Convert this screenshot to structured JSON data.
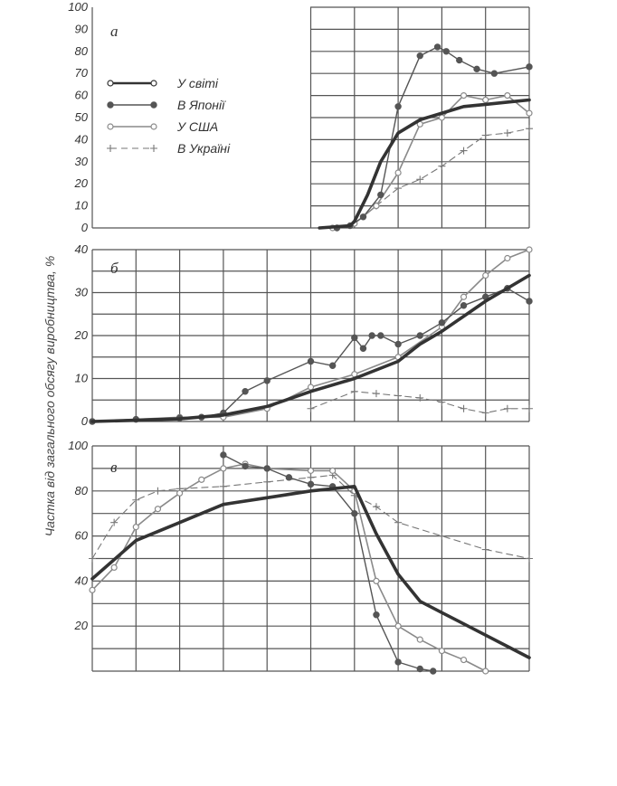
{
  "ylabel": "Частка від загального обсягу виробництва, %",
  "legend": [
    {
      "key": "world",
      "label": "У світі"
    },
    {
      "key": "japan",
      "label": "В Японії"
    },
    {
      "key": "usa",
      "label": "У США"
    },
    {
      "key": "ukraine",
      "label": "В Україні"
    }
  ],
  "colors": {
    "grid": "#555555",
    "world": "#333333",
    "japan": "#555555",
    "usa": "#888888",
    "ukraine": "#777777"
  },
  "chart_data": [
    {
      "type": "line",
      "panel_label": "а",
      "x_range": [
        0,
        10
      ],
      "ylim": [
        0,
        100
      ],
      "y_ticks": [
        "0",
        "10",
        "20",
        "30",
        "40",
        "50",
        "60",
        "70",
        "80",
        "90",
        "100"
      ],
      "grid": true,
      "legend_position": "top-left",
      "series": [
        {
          "key": "world",
          "points": [
            [
              5.2,
              0
            ],
            [
              5.9,
              1
            ],
            [
              6.0,
              3
            ],
            [
              6.3,
              15
            ],
            [
              6.6,
              30
            ],
            [
              7.0,
              43
            ],
            [
              7.5,
              49
            ],
            [
              8.0,
              52
            ],
            [
              8.5,
              55
            ],
            [
              9.0,
              56
            ],
            [
              9.5,
              57
            ],
            [
              10.0,
              58
            ]
          ]
        },
        {
          "key": "japan",
          "points": [
            [
              5.6,
              0
            ],
            [
              5.9,
              1
            ],
            [
              6.2,
              5
            ],
            [
              6.6,
              15
            ],
            [
              7.0,
              55
            ],
            [
              7.5,
              78
            ],
            [
              7.9,
              82
            ],
            [
              8.1,
              80
            ],
            [
              8.4,
              76
            ],
            [
              8.8,
              72
            ],
            [
              9.2,
              70
            ],
            [
              10.0,
              73
            ]
          ]
        },
        {
          "key": "usa",
          "points": [
            [
              5.5,
              0
            ],
            [
              6.0,
              2
            ],
            [
              6.5,
              10
            ],
            [
              7.0,
              25
            ],
            [
              7.5,
              47
            ],
            [
              8.0,
              50
            ],
            [
              8.5,
              60
            ],
            [
              9.0,
              58
            ],
            [
              9.5,
              60
            ],
            [
              10.0,
              52
            ]
          ]
        },
        {
          "key": "ukraine",
          "points": [
            [
              6.5,
              10
            ],
            [
              7.0,
              18
            ],
            [
              7.5,
              22
            ],
            [
              8.0,
              28
            ],
            [
              8.5,
              35
            ],
            [
              9.0,
              42
            ],
            [
              9.5,
              43
            ],
            [
              10.0,
              45
            ]
          ]
        }
      ]
    },
    {
      "type": "line",
      "panel_label": "б",
      "x_range": [
        0,
        10
      ],
      "ylim": [
        0,
        40
      ],
      "y_ticks": [
        "0",
        "10",
        "20",
        "30",
        "40"
      ],
      "grid": true,
      "series": [
        {
          "key": "world",
          "points": [
            [
              0,
              0
            ],
            [
              1,
              0.3
            ],
            [
              2,
              0.6
            ],
            [
              3,
              1.5
            ],
            [
              4,
              3.5
            ],
            [
              5,
              7
            ],
            [
              6,
              10
            ],
            [
              7,
              14
            ],
            [
              7.5,
              18
            ],
            [
              8,
              21
            ],
            [
              9,
              28
            ],
            [
              10,
              34
            ]
          ]
        },
        {
          "key": "japan",
          "points": [
            [
              0,
              0
            ],
            [
              1,
              0.5
            ],
            [
              2,
              0.8
            ],
            [
              2.5,
              1.0
            ],
            [
              3,
              2
            ],
            [
              3.5,
              7
            ],
            [
              4,
              9.5
            ],
            [
              5,
              14
            ],
            [
              5.5,
              13
            ],
            [
              6,
              19.5
            ],
            [
              6.2,
              17
            ],
            [
              6.4,
              20
            ],
            [
              6.6,
              20
            ],
            [
              7,
              18
            ],
            [
              7.5,
              20
            ],
            [
              8,
              23
            ],
            [
              8.5,
              27
            ],
            [
              9,
              29
            ],
            [
              9.5,
              31
            ],
            [
              10,
              28
            ]
          ]
        },
        {
          "key": "usa",
          "points": [
            [
              0,
              0
            ],
            [
              1,
              0.5
            ],
            [
              2,
              1
            ],
            [
              3,
              1
            ],
            [
              4,
              3
            ],
            [
              5,
              8
            ],
            [
              6,
              11
            ],
            [
              7,
              15
            ],
            [
              8,
              22
            ],
            [
              8.5,
              29
            ],
            [
              9,
              34
            ],
            [
              9.5,
              38
            ],
            [
              10,
              40
            ]
          ]
        },
        {
          "key": "ukraine",
          "points": [
            [
              5,
              3
            ],
            [
              6,
              7
            ],
            [
              6.5,
              6.5
            ],
            [
              7,
              6
            ],
            [
              7.5,
              5.5
            ],
            [
              8,
              4.5
            ],
            [
              8.5,
              3
            ],
            [
              9,
              2
            ],
            [
              9.5,
              3
            ],
            [
              10,
              3
            ]
          ]
        }
      ]
    },
    {
      "type": "line",
      "panel_label": "в",
      "x_range": [
        0,
        10
      ],
      "ylim": [
        0,
        100
      ],
      "y_ticks": [
        "20",
        "40",
        "60",
        "80",
        "100"
      ],
      "grid": true,
      "series": [
        {
          "key": "world",
          "points": [
            [
              0,
              41
            ],
            [
              1,
              58
            ],
            [
              2,
              66
            ],
            [
              3,
              74
            ],
            [
              4,
              77
            ],
            [
              5,
              80
            ],
            [
              6,
              82
            ],
            [
              6.5,
              61
            ],
            [
              7,
              43
            ],
            [
              7.5,
              31
            ],
            [
              8,
              26
            ],
            [
              8.5,
              21
            ],
            [
              9,
              16
            ],
            [
              9.5,
              11
            ],
            [
              10,
              6
            ]
          ]
        },
        {
          "key": "japan",
          "points": [
            [
              3,
              96
            ],
            [
              3.5,
              91
            ],
            [
              4,
              90
            ],
            [
              4.5,
              86
            ],
            [
              5,
              83
            ],
            [
              5.5,
              82
            ],
            [
              6,
              70
            ],
            [
              6.5,
              25
            ],
            [
              7,
              4
            ],
            [
              7.5,
              1
            ],
            [
              7.8,
              0
            ]
          ]
        },
        {
          "key": "usa",
          "points": [
            [
              0,
              36
            ],
            [
              0.5,
              46
            ],
            [
              1,
              64
            ],
            [
              1.5,
              72
            ],
            [
              2,
              79
            ],
            [
              2.5,
              85
            ],
            [
              3,
              90
            ],
            [
              3.5,
              92
            ],
            [
              4,
              90
            ],
            [
              5,
              89
            ],
            [
              5.5,
              89
            ],
            [
              6,
              80
            ],
            [
              6.5,
              40
            ],
            [
              7,
              20
            ],
            [
              7.5,
              14
            ],
            [
              8,
              9
            ],
            [
              8.5,
              5
            ],
            [
              9,
              0
            ]
          ]
        },
        {
          "key": "ukraine",
          "points": [
            [
              0,
              50
            ],
            [
              0.5,
              66
            ],
            [
              1,
              76
            ],
            [
              1.5,
              80
            ],
            [
              2,
              81
            ],
            [
              3,
              82
            ],
            [
              4,
              84
            ],
            [
              5,
              86
            ],
            [
              5.5,
              87
            ],
            [
              6,
              78
            ],
            [
              6.5,
              73
            ],
            [
              7,
              66
            ],
            [
              8,
              60
            ],
            [
              9,
              54
            ],
            [
              10,
              50
            ]
          ]
        }
      ]
    }
  ]
}
